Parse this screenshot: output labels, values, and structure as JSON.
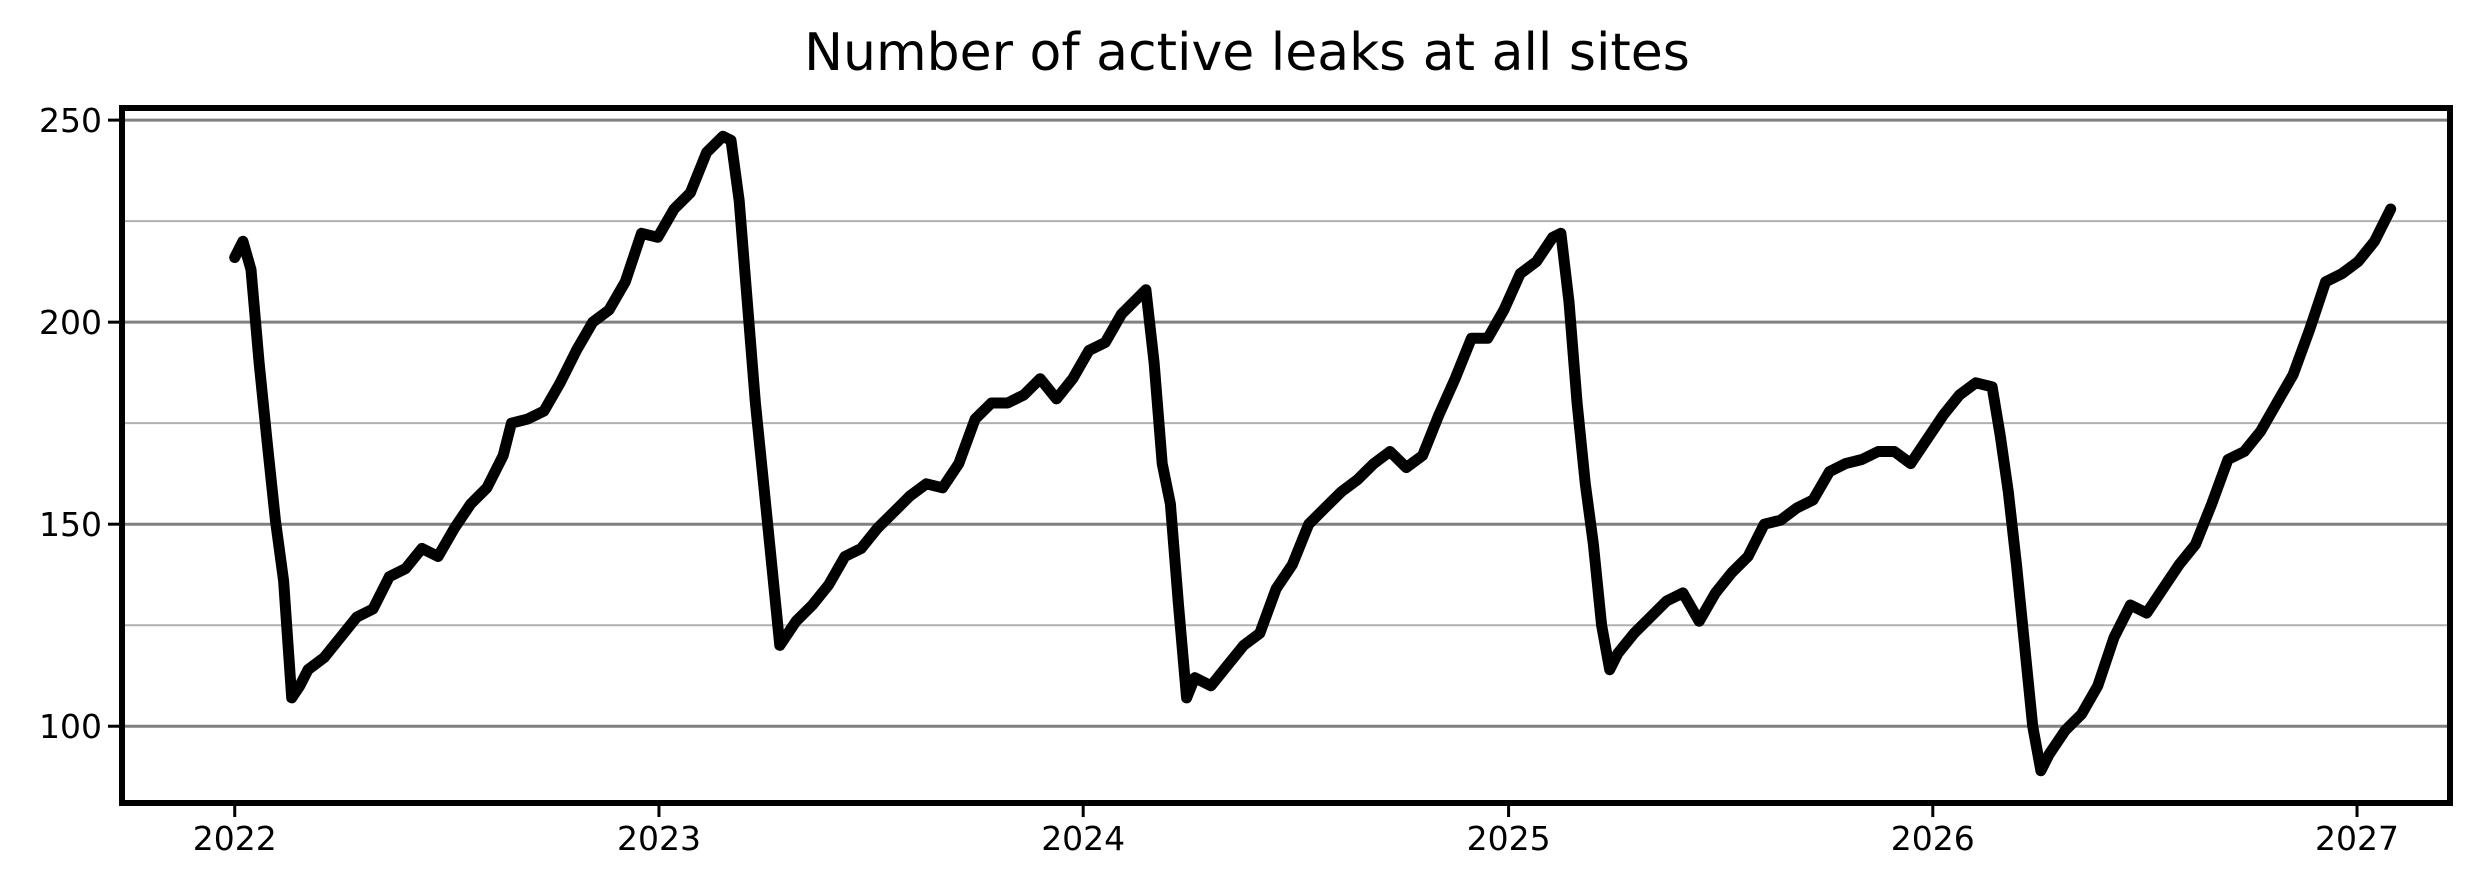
{
  "chart_data": {
    "type": "line",
    "title": "Number of active leaks at all sites",
    "xlabel": "",
    "ylabel": "",
    "x_ticks": [
      "2022",
      "2023",
      "2024",
      "2025",
      "2026",
      "2027"
    ],
    "y_ticks": [
      100,
      150,
      200,
      250
    ],
    "xlim": [
      "2021-09-26",
      "2027-03-22"
    ],
    "ylim": [
      81,
      253
    ],
    "grid": {
      "major_y": [
        100,
        150,
        200,
        250
      ],
      "minor_y": [
        125,
        175,
        225
      ]
    },
    "legend": "none",
    "series": [
      {
        "color": "#000000",
        "points": [
          [
            "2022-01-01",
            216
          ],
          [
            "2022-01-08",
            220
          ],
          [
            "2022-01-15",
            213
          ],
          [
            "2022-01-22",
            190
          ],
          [
            "2022-01-29",
            170
          ],
          [
            "2022-02-05",
            151
          ],
          [
            "2022-02-12",
            136
          ],
          [
            "2022-02-19",
            107
          ],
          [
            "2022-02-26",
            110
          ],
          [
            "2022-03-05",
            114
          ],
          [
            "2022-03-19",
            117
          ],
          [
            "2022-04-02",
            122
          ],
          [
            "2022-04-16",
            127
          ],
          [
            "2022-04-30",
            129
          ],
          [
            "2022-05-14",
            137
          ],
          [
            "2022-05-28",
            139
          ],
          [
            "2022-06-11",
            144
          ],
          [
            "2022-06-25",
            142
          ],
          [
            "2022-07-09",
            149
          ],
          [
            "2022-07-23",
            155
          ],
          [
            "2022-08-06",
            159
          ],
          [
            "2022-08-20",
            167
          ],
          [
            "2022-08-27",
            175
          ],
          [
            "2022-09-10",
            176
          ],
          [
            "2022-09-24",
            178
          ],
          [
            "2022-10-08",
            185
          ],
          [
            "2022-10-22",
            193
          ],
          [
            "2022-11-05",
            200
          ],
          [
            "2022-11-19",
            203
          ],
          [
            "2022-12-03",
            210
          ],
          [
            "2022-12-17",
            222
          ],
          [
            "2022-12-31",
            221
          ],
          [
            "2023-01-14",
            228
          ],
          [
            "2023-01-28",
            232
          ],
          [
            "2023-02-11",
            242
          ],
          [
            "2023-02-25",
            246
          ],
          [
            "2023-03-04",
            245
          ],
          [
            "2023-03-11",
            230
          ],
          [
            "2023-03-18",
            205
          ],
          [
            "2023-03-25",
            180
          ],
          [
            "2023-04-01",
            160
          ],
          [
            "2023-04-08",
            140
          ],
          [
            "2023-04-15",
            120
          ],
          [
            "2023-04-29",
            126
          ],
          [
            "2023-05-13",
            130
          ],
          [
            "2023-05-27",
            135
          ],
          [
            "2023-06-10",
            142
          ],
          [
            "2023-06-24",
            144
          ],
          [
            "2023-07-08",
            149
          ],
          [
            "2023-07-22",
            153
          ],
          [
            "2023-08-05",
            157
          ],
          [
            "2023-08-19",
            160
          ],
          [
            "2023-09-02",
            159
          ],
          [
            "2023-09-16",
            165
          ],
          [
            "2023-09-30",
            176
          ],
          [
            "2023-10-14",
            180
          ],
          [
            "2023-10-28",
            180
          ],
          [
            "2023-11-11",
            182
          ],
          [
            "2023-11-25",
            186
          ],
          [
            "2023-12-09",
            181
          ],
          [
            "2023-12-23",
            186
          ],
          [
            "2024-01-06",
            193
          ],
          [
            "2024-01-20",
            195
          ],
          [
            "2024-02-03",
            202
          ],
          [
            "2024-02-17",
            206
          ],
          [
            "2024-02-24",
            208
          ],
          [
            "2024-03-02",
            190
          ],
          [
            "2024-03-09",
            165
          ],
          [
            "2024-03-16",
            155
          ],
          [
            "2024-03-23",
            130
          ],
          [
            "2024-03-30",
            107
          ],
          [
            "2024-04-06",
            112
          ],
          [
            "2024-04-20",
            110
          ],
          [
            "2024-05-04",
            115
          ],
          [
            "2024-05-18",
            120
          ],
          [
            "2024-06-01",
            123
          ],
          [
            "2024-06-15",
            134
          ],
          [
            "2024-06-29",
            140
          ],
          [
            "2024-07-13",
            150
          ],
          [
            "2024-07-27",
            154
          ],
          [
            "2024-08-10",
            158
          ],
          [
            "2024-08-24",
            161
          ],
          [
            "2024-09-07",
            165
          ],
          [
            "2024-09-21",
            168
          ],
          [
            "2024-10-05",
            164
          ],
          [
            "2024-10-19",
            167
          ],
          [
            "2024-11-02",
            177
          ],
          [
            "2024-11-16",
            186
          ],
          [
            "2024-11-30",
            196
          ],
          [
            "2024-12-14",
            196
          ],
          [
            "2024-12-28",
            203
          ],
          [
            "2025-01-11",
            212
          ],
          [
            "2025-01-25",
            215
          ],
          [
            "2025-02-08",
            221
          ],
          [
            "2025-02-15",
            222
          ],
          [
            "2025-02-22",
            205
          ],
          [
            "2025-03-01",
            180
          ],
          [
            "2025-03-08",
            160
          ],
          [
            "2025-03-15",
            145
          ],
          [
            "2025-03-22",
            125
          ],
          [
            "2025-03-29",
            114
          ],
          [
            "2025-04-05",
            118
          ],
          [
            "2025-04-19",
            123
          ],
          [
            "2025-05-03",
            127
          ],
          [
            "2025-05-17",
            131
          ],
          [
            "2025-05-31",
            133
          ],
          [
            "2025-06-14",
            126
          ],
          [
            "2025-06-28",
            133
          ],
          [
            "2025-07-12",
            138
          ],
          [
            "2025-07-26",
            142
          ],
          [
            "2025-08-09",
            150
          ],
          [
            "2025-08-23",
            151
          ],
          [
            "2025-09-06",
            154
          ],
          [
            "2025-09-20",
            156
          ],
          [
            "2025-10-04",
            163
          ],
          [
            "2025-10-18",
            165
          ],
          [
            "2025-11-01",
            166
          ],
          [
            "2025-11-15",
            168
          ],
          [
            "2025-11-29",
            168
          ],
          [
            "2025-12-13",
            165
          ],
          [
            "2025-12-27",
            171
          ],
          [
            "2026-01-10",
            177
          ],
          [
            "2026-01-24",
            182
          ],
          [
            "2026-02-07",
            185
          ],
          [
            "2026-02-21",
            184
          ],
          [
            "2026-02-28",
            172
          ],
          [
            "2026-03-07",
            158
          ],
          [
            "2026-03-14",
            140
          ],
          [
            "2026-03-21",
            120
          ],
          [
            "2026-03-28",
            100
          ],
          [
            "2026-04-04",
            89
          ],
          [
            "2026-04-11",
            93
          ],
          [
            "2026-04-25",
            99
          ],
          [
            "2026-05-09",
            103
          ],
          [
            "2026-05-23",
            110
          ],
          [
            "2026-06-06",
            122
          ],
          [
            "2026-06-20",
            130
          ],
          [
            "2026-07-04",
            128
          ],
          [
            "2026-07-18",
            134
          ],
          [
            "2026-08-01",
            140
          ],
          [
            "2026-08-15",
            145
          ],
          [
            "2026-08-29",
            155
          ],
          [
            "2026-09-12",
            166
          ],
          [
            "2026-09-26",
            168
          ],
          [
            "2026-10-10",
            173
          ],
          [
            "2026-10-24",
            180
          ],
          [
            "2026-11-07",
            187
          ],
          [
            "2026-11-21",
            198
          ],
          [
            "2026-12-05",
            210
          ],
          [
            "2026-12-19",
            212
          ],
          [
            "2027-01-02",
            215
          ],
          [
            "2027-01-16",
            220
          ],
          [
            "2027-01-30",
            228
          ]
        ]
      }
    ]
  }
}
